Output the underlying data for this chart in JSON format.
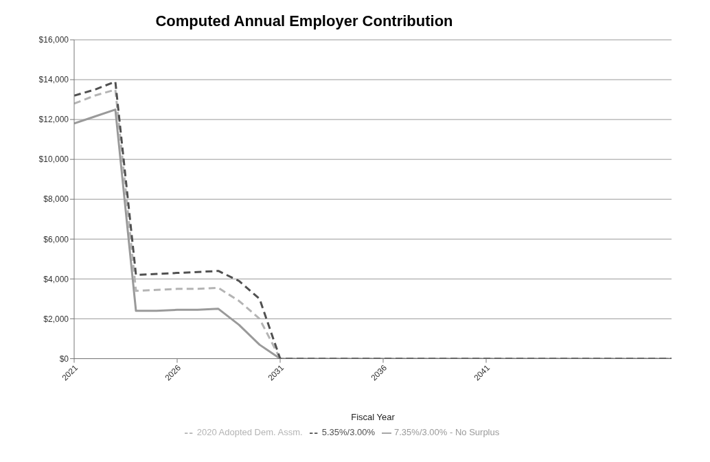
{
  "chart_data": {
    "type": "line",
    "title": "Computed Annual Employer Contribution",
    "xlabel": "Fiscal Year",
    "x": [
      2021,
      2022,
      2023,
      2024,
      2025,
      2026,
      2027,
      2028,
      2029,
      2030,
      2031,
      2032,
      2033,
      2034,
      2035,
      2036,
      2037,
      2038,
      2039,
      2040,
      2041,
      2042,
      2043,
      2044,
      2045,
      2046,
      2047,
      2048,
      2049,
      2050
    ],
    "series": [
      {
        "name": "7.35%/3.00% - No Surplus",
        "color": "#9a9a9a",
        "line_style": "solid",
        "values": [
          11800,
          12150,
          12500,
          2400,
          2400,
          2450,
          2450,
          2500,
          1700,
          700,
          0,
          0,
          0,
          0,
          0,
          0,
          0,
          0,
          0,
          0,
          0,
          0,
          0,
          0,
          0,
          0,
          0,
          0,
          0,
          0
        ]
      },
      {
        "name": "2020 Adopted Dem. Assm.",
        "color": "#b4b4b4",
        "line_style": "dashed",
        "values": [
          12800,
          13200,
          13500,
          3400,
          3450,
          3500,
          3500,
          3550,
          2900,
          2000,
          0,
          0,
          0,
          0,
          0,
          0,
          0,
          0,
          0,
          0,
          0,
          0,
          0,
          0,
          0,
          0,
          0,
          0,
          0,
          0
        ]
      },
      {
        "name": "5.35%/3.00%",
        "color": "#505050",
        "line_style": "dashed",
        "values": [
          13200,
          13500,
          13900,
          4200,
          4250,
          4300,
          4350,
          4400,
          3900,
          3000,
          0,
          0,
          0,
          0,
          0,
          0,
          0,
          0,
          0,
          0,
          0,
          0,
          0,
          0,
          0,
          0,
          0,
          0,
          0,
          0
        ]
      }
    ],
    "xlim": [
      2021,
      2050
    ],
    "xticks": [
      2021,
      2026,
      2031,
      2036,
      2041
    ],
    "ylim": [
      0,
      16000
    ],
    "yticks": [
      {
        "value": 0,
        "label": "$0"
      },
      {
        "value": 2000,
        "label": "$2,000"
      },
      {
        "value": 4000,
        "label": "$4,000"
      },
      {
        "value": 6000,
        "label": "$6,000"
      },
      {
        "value": 8000,
        "label": "$8,000"
      },
      {
        "value": 10000,
        "label": "$10,000"
      },
      {
        "value": 12000,
        "label": "$12,000"
      },
      {
        "value": 14000,
        "label": "$14,000"
      },
      {
        "value": 16000,
        "label": "$16,000"
      }
    ],
    "grid": "y",
    "legend": "bottom",
    "marker": "none"
  }
}
